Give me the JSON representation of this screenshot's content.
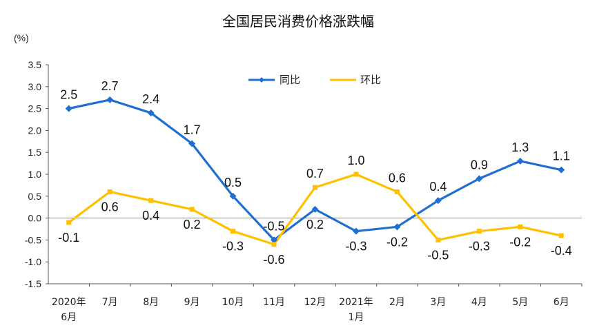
{
  "chart_data": {
    "type": "line",
    "title": "全国居民消费价格涨跌幅",
    "ylabel": "(%)",
    "ylim": [
      -1.5,
      3.5
    ],
    "yticks": [
      "3.5",
      "3.0",
      "2.5",
      "2.0",
      "1.5",
      "1.0",
      "0.5",
      "0.0",
      "-0.5",
      "-1.0",
      "-1.5"
    ],
    "categories": [
      [
        "2020年",
        "6月"
      ],
      [
        "7月"
      ],
      [
        "8月"
      ],
      [
        "9月"
      ],
      [
        "10月"
      ],
      [
        "11月"
      ],
      [
        "12月"
      ],
      [
        "2021年",
        "1月"
      ],
      [
        "2月"
      ],
      [
        "3月"
      ],
      [
        "4月"
      ],
      [
        "5月"
      ],
      [
        "6月"
      ]
    ],
    "series": [
      {
        "name": "同比",
        "color": "#1f6fd1",
        "values": [
          2.5,
          2.7,
          2.4,
          1.7,
          0.5,
          -0.5,
          0.2,
          -0.3,
          -0.2,
          0.4,
          0.9,
          1.3,
          1.1
        ],
        "labels": [
          "2.5",
          "2.7",
          "2.4",
          "1.7",
          "0.5",
          "-0.5",
          "0.2",
          "-0.3",
          "-0.2",
          "0.4",
          "0.9",
          "1.3",
          "1.1"
        ]
      },
      {
        "name": "环比",
        "color": "#ffc000",
        "values": [
          -0.1,
          0.6,
          0.4,
          0.2,
          -0.3,
          -0.6,
          0.7,
          1.0,
          0.6,
          -0.5,
          -0.3,
          -0.2,
          -0.4
        ],
        "labels": [
          "-0.1",
          "0.6",
          "0.4",
          "0.2",
          "-0.3",
          "-0.6",
          "0.7",
          "1.0",
          "0.6",
          "-0.5",
          "-0.3",
          "-0.2",
          "-0.4"
        ]
      }
    ],
    "legend_position": "top-center",
    "grid": false
  }
}
